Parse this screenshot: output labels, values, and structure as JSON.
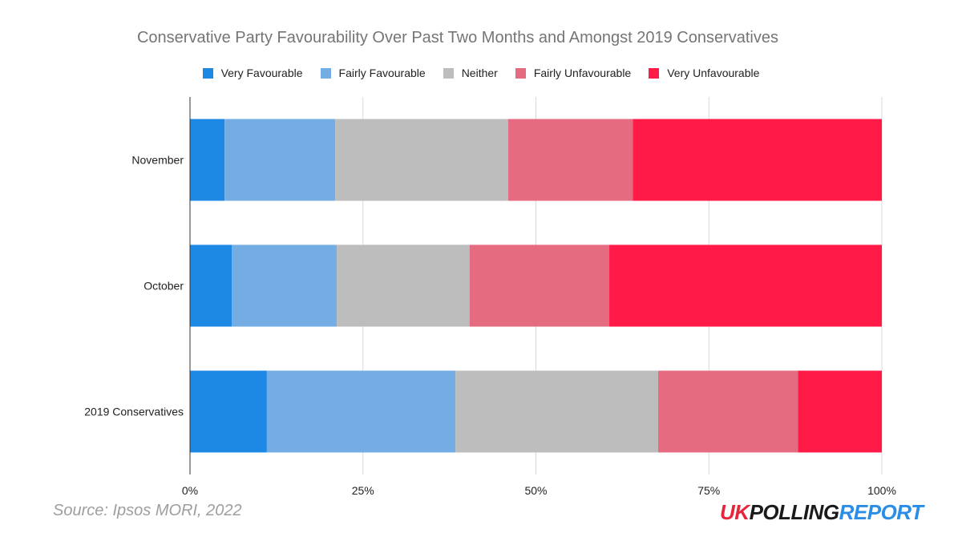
{
  "title": "Conservative Party Favourability Over Past Two Months and Amongst 2019 Conservatives",
  "source": "Source: Ipsos MORI, 2022",
  "logo": {
    "uk": "UK",
    "polling": "POLLING",
    "report": "REPORT"
  },
  "chart_data": {
    "type": "bar",
    "orientation": "horizontal",
    "stacked": "percent",
    "categories": [
      "November",
      "October",
      "2019 Conservatives"
    ],
    "series": [
      {
        "name": "Very Favourable",
        "color": "#1e88e5",
        "values": [
          5,
          6,
          11
        ]
      },
      {
        "name": "Fairly Favourable",
        "color": "#73ade4",
        "values": [
          16,
          15,
          27
        ]
      },
      {
        "name": "Neither",
        "color": "#bdbdbd",
        "values": [
          25,
          19,
          29
        ]
      },
      {
        "name": "Fairly Unfavourable",
        "color": "#e46b80",
        "values": [
          18,
          20,
          20
        ]
      },
      {
        "name": "Very Unfavourable",
        "color": "#ff1a47",
        "values": [
          36,
          39,
          12
        ]
      }
    ],
    "xticks": [
      "0%",
      "25%",
      "50%",
      "75%",
      "100%"
    ],
    "xlim": [
      0,
      100
    ],
    "grid": true,
    "legend_position": "top"
  }
}
